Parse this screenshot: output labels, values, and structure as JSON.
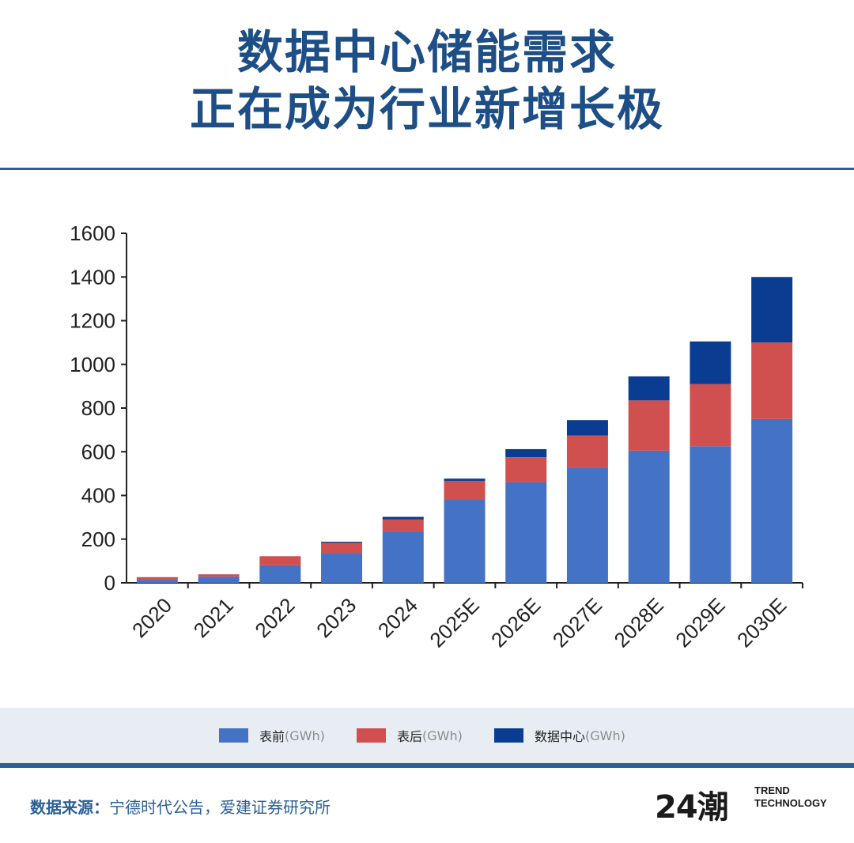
{
  "title": {
    "line1": "数据中心储能需求",
    "line2": "正在成为行业新增长极"
  },
  "chart_data": {
    "type": "bar",
    "stacked": true,
    "categories": [
      "2020",
      "2021",
      "2022",
      "2023",
      "2024",
      "2025E",
      "2026E",
      "2027E",
      "2028E",
      "2029E",
      "2030E"
    ],
    "series": [
      {
        "name": "表前",
        "unit": "(GWh)",
        "color": "#4472c4",
        "values": [
          14,
          28,
          80,
          136,
          235,
          380,
          460,
          525,
          605,
          625,
          750
        ]
      },
      {
        "name": "表后",
        "unit": "(GWh)",
        "color": "#d0504f",
        "values": [
          12,
          11,
          42,
          47,
          55,
          87,
          115,
          150,
          230,
          285,
          350
        ]
      },
      {
        "name": "数据中心",
        "unit": "(GWh)",
        "color": "#0a3d91",
        "values": [
          0,
          0,
          0,
          5,
          12,
          10,
          37,
          70,
          110,
          195,
          300
        ]
      }
    ],
    "ylim": [
      0,
      1600
    ],
    "yticks": [
      0,
      200,
      400,
      600,
      800,
      1000,
      1200,
      1400,
      1600
    ],
    "xlabel": "",
    "ylabel": "",
    "grid": false,
    "legend": "bottom"
  },
  "source": {
    "label": "数据来源：",
    "text": "宁德时代公告，爱建证券研究所"
  },
  "logo": {
    "mark": "24潮",
    "line1": "TREND",
    "line2": "TECHNOLOGY"
  }
}
